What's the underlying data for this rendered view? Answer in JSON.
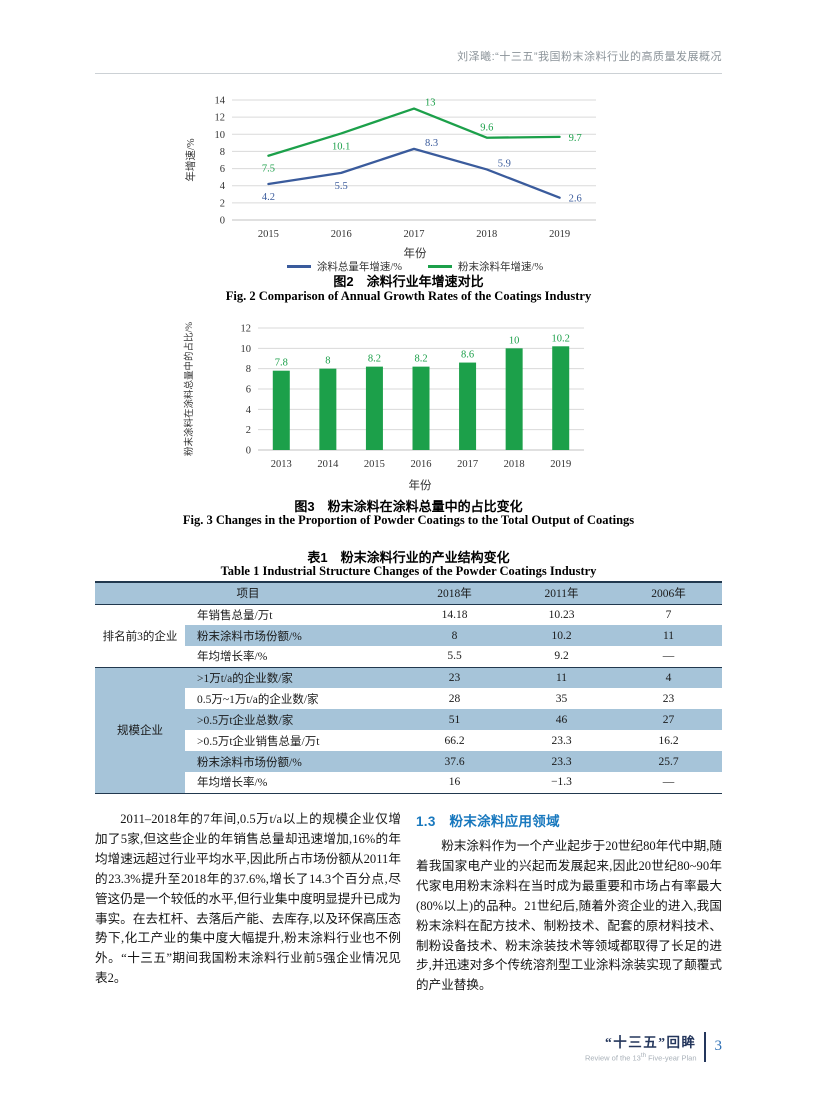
{
  "header": {
    "running_title": "刘泽曦:“十三五”我国粉末涂料行业的高质量发展概况"
  },
  "colors": {
    "line_blue": "#3a5b9c",
    "line_green": "#1ca04a",
    "table_row_accent": "#a6c4d9",
    "section_heading_blue": "#1878be",
    "footer_navy": "#24365c",
    "page_number_blue": "#2d6fb5"
  },
  "chart_data": [
    {
      "type": "line",
      "title": "图2 涂料行业年增速对比",
      "x": [
        "2015",
        "2016",
        "2017",
        "2018",
        "2019"
      ],
      "series": [
        {
          "name": "涂料总量年增速/%",
          "color": "#3a5b9c",
          "values": [
            4.2,
            5.5,
            8.3,
            5.9,
            2.6
          ],
          "label_pos": [
            "below",
            "below",
            "above-right",
            "above-right",
            "right"
          ]
        },
        {
          "name": "粉末涂料年增速/%",
          "color": "#1ca04a",
          "values": [
            7.5,
            10.1,
            13,
            9.6,
            9.7
          ],
          "label_pos": [
            "below",
            "below",
            "above-right",
            "above",
            "right"
          ]
        }
      ],
      "xlabel": "年份",
      "ylabel": "年增速/%",
      "ylim": [
        0,
        14
      ],
      "ytick_step": 2,
      "grid": true,
      "legend_position": "bottom"
    },
    {
      "type": "bar",
      "title": "图3 粉末涂料在涂料总量中的占比变化",
      "categories": [
        "2013",
        "2014",
        "2015",
        "2016",
        "2017",
        "2018",
        "2019"
      ],
      "values": [
        7.8,
        8,
        8.2,
        8.2,
        8.6,
        10,
        10.2
      ],
      "bar_color": "#1ca04a",
      "xlabel": "年份",
      "ylabel": "粉末涂料在涂料总量中的占比/%",
      "ylim": [
        0,
        12
      ],
      "ytick_step": 2,
      "grid": true
    }
  ],
  "figure2": {
    "caption_zh": "图2　涂料行业年增速对比",
    "caption_en": "Fig. 2  Comparison of Annual Growth Rates of the Coatings Industry"
  },
  "figure3": {
    "caption_zh": "图3　粉末涂料在涂料总量中的占比变化",
    "caption_en": "Fig. 3  Changes in the Proportion of Powder Coatings to the Total Output of Coatings"
  },
  "table": {
    "title_zh": "表1　粉末涂料行业的产业结构变化",
    "title_en": "Table 1  Industrial Structure Changes of the Powder Coatings Industry",
    "header": {
      "item": "项目",
      "years": [
        "2018年",
        "2011年",
        "2006年"
      ]
    },
    "groups": [
      {
        "label": "排名前3的企业",
        "rows": [
          {
            "item": "年销售总量/万t",
            "values": [
              "14.18",
              "10.23",
              "7"
            ]
          },
          {
            "item": "粉末涂料市场份额/%",
            "values": [
              "8",
              "10.2",
              "11"
            ]
          },
          {
            "item": "年均增长率/%",
            "values": [
              "5.5",
              "9.2",
              "—"
            ]
          }
        ]
      },
      {
        "label": "规模企业",
        "rows": [
          {
            "item": ">1万t/a的企业数/家",
            "values": [
              "23",
              "11",
              "4"
            ]
          },
          {
            "item": "0.5万~1万t/a的企业数/家",
            "values": [
              "28",
              "35",
              "23"
            ]
          },
          {
            "item": ">0.5万t企业总数/家",
            "values": [
              "51",
              "46",
              "27"
            ]
          },
          {
            "item": ">0.5万t企业销售总量/万t",
            "values": [
              "66.2",
              "23.3",
              "16.2"
            ]
          },
          {
            "item": "粉末涂料市场份额/%",
            "values": [
              "37.6",
              "23.3",
              "25.7"
            ]
          },
          {
            "item": "年均增长率/%",
            "values": [
              "16",
              "−1.3",
              "—"
            ]
          }
        ]
      }
    ]
  },
  "body": {
    "left_paragraph": "2011–2018年的7年间,0.5万t/a以上的规模企业仅增加了5家,但这些企业的年销售总量却迅速增加,16%的年均增速远超过行业平均水平,因此所占市场份额从2011年的23.3%提升至2018年的37.6%,增长了14.3个百分点,尽管这仍是一个较低的水平,但行业集中度明显提升已成为事实。在去杠杆、去落后产能、去库存,以及环保高压态势下,化工产业的集中度大幅提升,粉末涂料行业也不例外。“十三五”期间我国粉末涂料行业前5强企业情况见表2。",
    "section_heading": "1.3　粉末涂料应用领域",
    "right_paragraph": "粉末涂料作为一个产业起步于20世纪80年代中期,随着我国家电产业的兴起而发展起来,因此20世纪80~90年代家电用粉末涂料在当时成为最重要和市场占有率最大(80%以上)的品种。21世纪后,随着外资企业的进入,我国粉末涂料在配方技术、制粉技术、配套的原材料技术、制粉设备技术、粉末涂装技术等领域都取得了长足的进步,并迅速对多个传统溶剂型工业涂料涂装实现了颠覆式的产业替换。"
  },
  "footer": {
    "volume_title_zh": "“十三五”回眸",
    "en_prefix": "Review of the 13",
    "en_sup": "th",
    "en_suffix": " Five-year Plan",
    "page_number": "3"
  }
}
